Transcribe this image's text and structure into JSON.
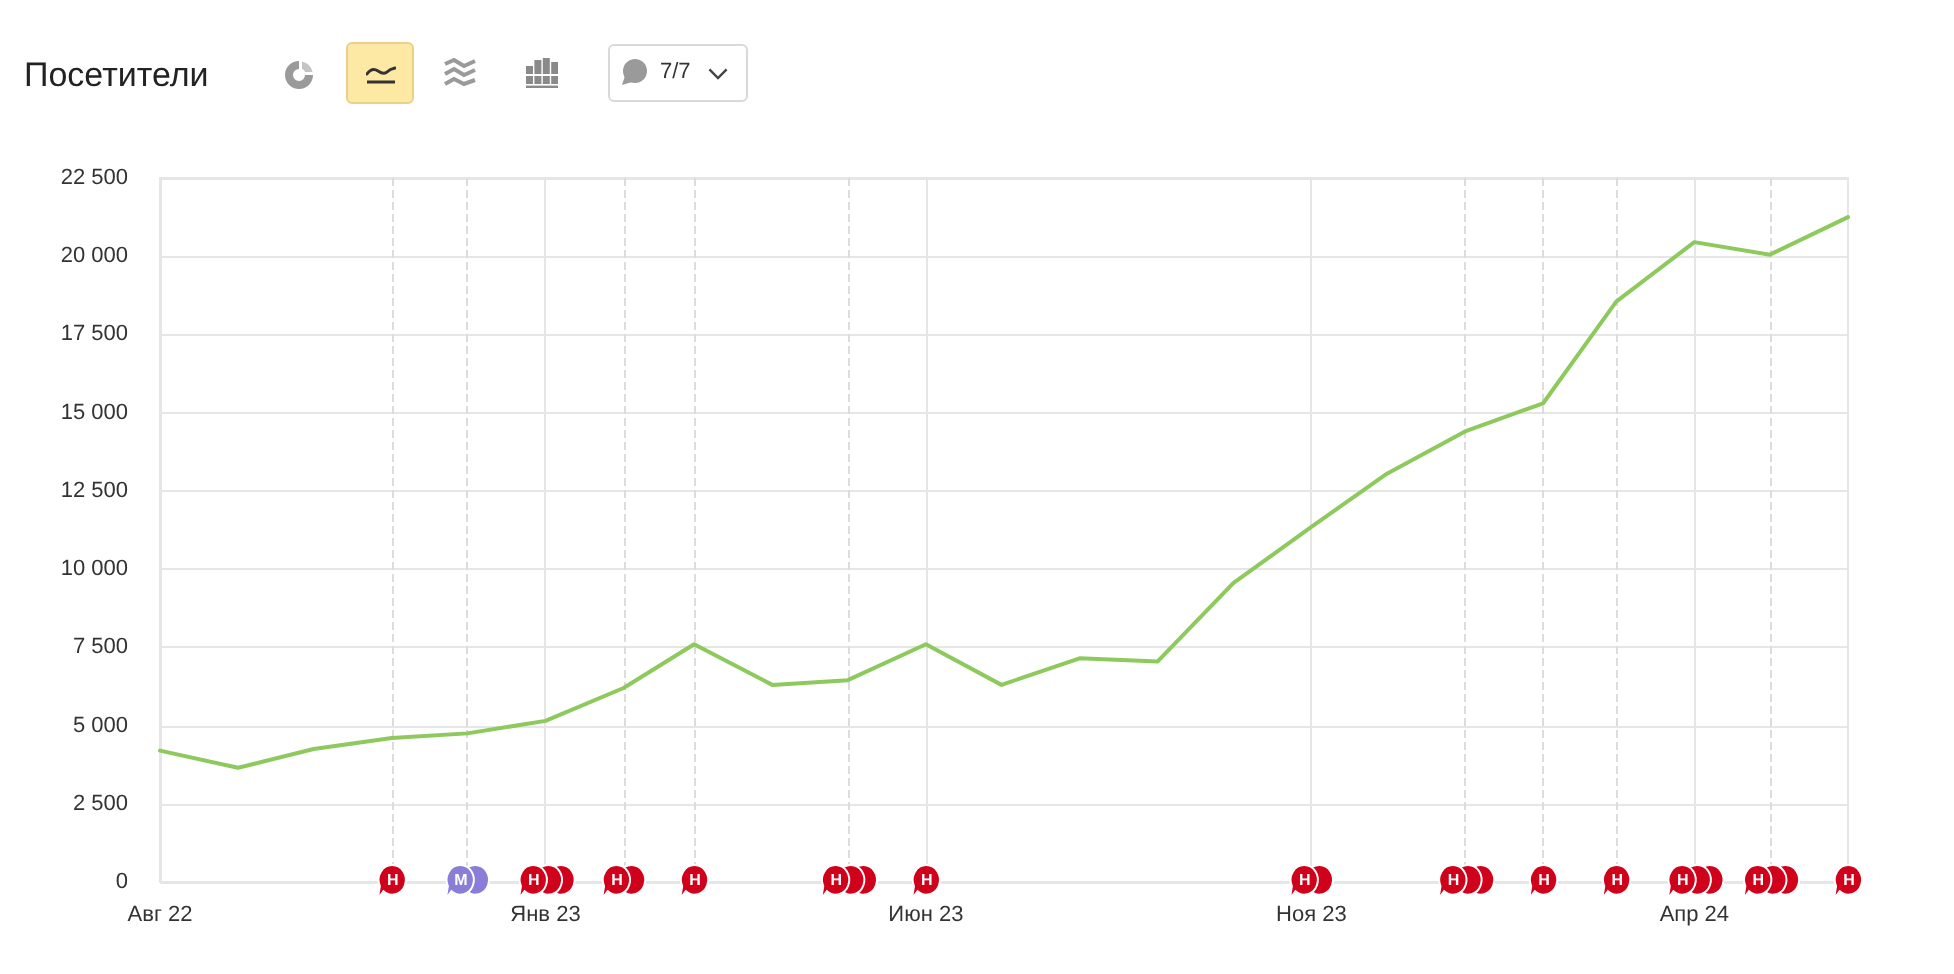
{
  "chart_data": {
    "type": "line",
    "title": "Посетители",
    "x": [
      "2022-08",
      "2022-09",
      "2022-10",
      "2022-11",
      "2022-12",
      "2023-01",
      "2023-02",
      "2023-03",
      "2023-04",
      "2023-05",
      "2023-06",
      "2023-07",
      "2023-08",
      "2023-09",
      "2023-10",
      "2023-11",
      "2023-12",
      "2024-01",
      "2024-02",
      "2024-03",
      "2024-04",
      "2024-05",
      "2024-06"
    ],
    "marker": "none",
    "series": [
      {
        "color": "#8dc95c",
        "values": [
          4200,
          3650,
          4250,
          4600,
          4750,
          5150,
          6200,
          7600,
          6300,
          6450,
          7600,
          6300,
          7150,
          7050,
          9550,
          11350,
          13050,
          14400,
          15300,
          18550,
          20450,
          20050,
          21250
        ]
      },
      {
        "type": "scatter",
        "color": "#d0021b",
        "marker": "circle",
        "x": [
          "2024-06-01",
          "2024-05-07",
          "2024-05-02",
          "2024-04-26",
          "2024-04-07",
          "2024-04-02",
          "2024-03-27",
          "2024-03-01",
          "2024-02-01",
          "2024-01-07",
          "2024-01-02",
          "2023-12-27",
          "2023-11-04",
          "2023-10-29",
          "2023-06-01",
          "2023-05-07",
          "2023-05-02",
          "2023-04-26",
          "2023-03-01",
          "2023-02-04",
          "2023-01-29",
          "2023-01-07",
          "2023-01-02",
          "2022-12-27",
          "2022-11-01"
        ],
        "values": [
          0,
          0,
          0,
          0,
          0,
          0,
          0,
          0,
          0,
          0,
          0,
          0,
          0,
          0,
          0,
          0,
          0,
          0,
          0,
          0,
          0,
          0,
          0,
          0,
          0
        ],
        "value_labels": [
          "Н",
          null,
          null,
          "Н",
          null,
          null,
          "Н",
          "Н",
          "Н",
          null,
          null,
          "Н",
          null,
          "Н",
          "Н",
          null,
          null,
          "Н",
          "Н",
          null,
          "Н",
          null,
          null,
          "Н",
          "Н"
        ]
      },
      {
        "type": "scatter",
        "color": "#8a7dd8",
        "marker": "circle",
        "x": [
          "2022-12-04",
          "2022-11-28"
        ],
        "values": [
          0,
          0
        ],
        "value_labels": [
          null,
          "М"
        ]
      }
    ],
    "xlim": [
      "2022-08",
      "2024-06"
    ],
    "xticks": [
      {
        "value": "2022-08",
        "label": "Авг 22"
      },
      {
        "value": "2023-01",
        "label": "Янв 23"
      },
      {
        "value": "2023-06",
        "label": "Июн 23"
      },
      {
        "value": "2023-11",
        "label": "Ноя 23"
      },
      {
        "value": "2024-04",
        "label": "Апр 24"
      }
    ],
    "ylim": [
      0,
      22500
    ],
    "yticks": [
      0,
      {
        "value": 2500,
        "label": "2 500"
      },
      {
        "value": 5000,
        "label": "5 000"
      },
      {
        "value": 7500,
        "label": "7 500"
      },
      {
        "value": 10000,
        "label": "10 000"
      },
      {
        "value": 12500,
        "label": "12 500"
      },
      {
        "value": 15000,
        "label": "15 000"
      },
      {
        "value": 17500,
        "label": "17 500"
      },
      {
        "value": 20000,
        "label": "20 000"
      },
      {
        "value": 22500,
        "label": "22 500"
      }
    ],
    "grid": true,
    "ref_lines": [
      {
        "axis": "x",
        "value": "2022-11",
        "color": "#dcdcdc",
        "line_style": "dashed"
      },
      {
        "axis": "x",
        "value": "2022-12",
        "color": "#dcdcdc",
        "line_style": "dashed"
      },
      {
        "axis": "x",
        "value": "2023-02",
        "color": "#dcdcdc",
        "line_style": "dashed"
      },
      {
        "axis": "x",
        "value": "2023-03",
        "color": "#dcdcdc",
        "line_style": "dashed"
      },
      {
        "axis": "x",
        "value": "2023-05",
        "color": "#dcdcdc",
        "line_style": "dashed"
      },
      {
        "axis": "x",
        "value": "2024-01",
        "color": "#dcdcdc",
        "line_style": "dashed"
      },
      {
        "axis": "x",
        "value": "2024-02",
        "color": "#dcdcdc",
        "line_style": "dashed"
      },
      {
        "axis": "x",
        "value": "2024-03",
        "color": "#dcdcdc",
        "line_style": "dashed"
      },
      {
        "axis": "x",
        "value": "2024-05",
        "color": "#dcdcdc",
        "line_style": "dashed"
      }
    ],
    "annotations": [
      "7/7"
    ]
  }
}
